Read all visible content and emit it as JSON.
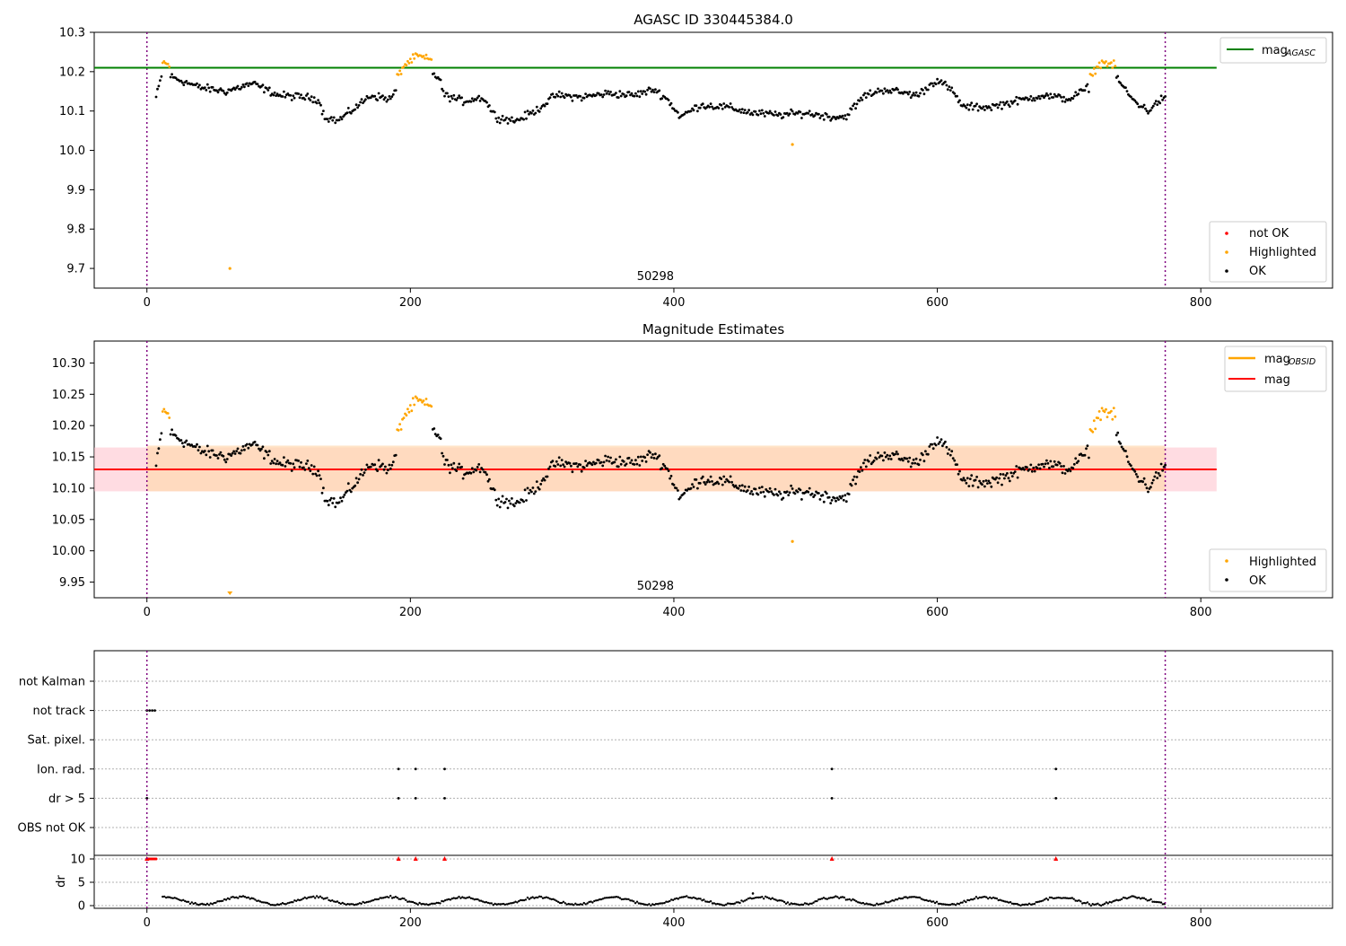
{
  "figure": {
    "title_top": "AGASC ID 330445384.0",
    "title_mid": "Magnitude Estimates",
    "obsid_label": "50298"
  },
  "colors": {
    "ok": "#000000",
    "highlighted": "#ffa500",
    "not_ok": "#ff0000",
    "mag_agasc_line": "#008000",
    "mag_obsid_line": "#ffa500",
    "mag_line": "#ff0000",
    "band_red": "#ffc0cb",
    "band_orange": "#ffd8b0",
    "obs_boundary": "#800080",
    "grid": "#b0b0b0"
  },
  "chart_data": [
    {
      "type": "scatter",
      "title": "AGASC ID 330445384.0",
      "xlim": [
        -40,
        900
      ],
      "ylim": [
        9.65,
        10.3
      ],
      "xticks": [
        0,
        200,
        400,
        600,
        800
      ],
      "yticks": [
        9.7,
        9.8,
        9.9,
        10.0,
        10.1,
        10.2,
        10.3
      ],
      "ytick_labels": [
        "9.7",
        "9.8",
        "9.9",
        "10.0",
        "10.1",
        "10.2",
        "10.3"
      ],
      "hline": {
        "name": "mag_AGASC",
        "value": 10.21,
        "xmax": 812
      },
      "obs_boundaries": [
        0,
        773
      ],
      "annotation": {
        "text": "50298",
        "x": 386
      },
      "legend_top": {
        "main": "mag",
        "sub": "AGASC"
      },
      "legend_bottom": [
        "not OK",
        "Highlighted",
        "OK"
      ],
      "outliers_highlighted": [
        [
          63,
          9.7
        ],
        [
          490,
          10.015
        ]
      ]
    },
    {
      "type": "scatter",
      "title": "Magnitude Estimates",
      "xlim": [
        -40,
        900
      ],
      "ylim": [
        9.925,
        10.335
      ],
      "xticks": [
        0,
        200,
        400,
        600,
        800
      ],
      "yticks": [
        9.95,
        10.0,
        10.05,
        10.1,
        10.15,
        10.2,
        10.25,
        10.3
      ],
      "ytick_labels": [
        "9.95",
        "10.00",
        "10.05",
        "10.10",
        "10.15",
        "10.20",
        "10.25",
        "10.30"
      ],
      "mag": 10.13,
      "mag_band": [
        10.095,
        10.165
      ],
      "mag_obsid_band": [
        10.095,
        10.168
      ],
      "band_xmax": 812,
      "obs_boundaries": [
        0,
        773
      ],
      "annotation": {
        "text": "50298",
        "x": 386
      },
      "legend_top": [
        {
          "main": "mag",
          "sub": "OBSID"
        },
        {
          "main": "mag",
          "sub": ""
        }
      ],
      "legend_bottom": [
        "Highlighted",
        "OK"
      ],
      "outliers_highlighted": [
        [
          490,
          10.015
        ]
      ]
    },
    {
      "type": "scatter",
      "title": "",
      "xlim": [
        -40,
        900
      ],
      "xticks": [
        0,
        200,
        400,
        600,
        800
      ],
      "flag_labels": [
        "not Kalman",
        "not track",
        "Sat. pixel.",
        "Ion. rad.",
        "dr > 5",
        "OBS not OK"
      ],
      "flags": {
        "not track": [
          0,
          2,
          4,
          6
        ],
        "Ion. rad.": [
          191,
          204,
          226,
          520,
          690
        ],
        "dr > 5": [
          0,
          191,
          204,
          226,
          520,
          690
        ]
      },
      "ylabel": "dr",
      "dr_yticks": [
        0,
        5,
        10
      ],
      "dr_ylim": [
        -0.5,
        10.5
      ],
      "dr_spikes": [
        0,
        191,
        204,
        226,
        520,
        690
      ],
      "dr_outlier": [
        460,
        2.6
      ],
      "obs_boundaries": [
        0,
        773
      ]
    }
  ]
}
